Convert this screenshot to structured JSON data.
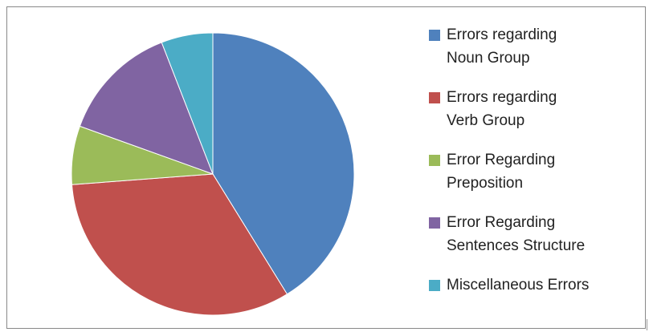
{
  "chart_data": {
    "type": "pie",
    "categories": [
      "Errors regarding Noun Group",
      "Errors regarding Verb Group",
      "Error Regarding Preposition",
      "Error Regarding Sentences Structure",
      "Miscellaneous Errors"
    ],
    "values": [
      41.2,
      32.6,
      6.7,
      13.6,
      5.9
    ],
    "colors": [
      "#4f81bd",
      "#c0504d",
      "#9bbb59",
      "#8064a2",
      "#4bacc6"
    ],
    "legend": "right"
  }
}
